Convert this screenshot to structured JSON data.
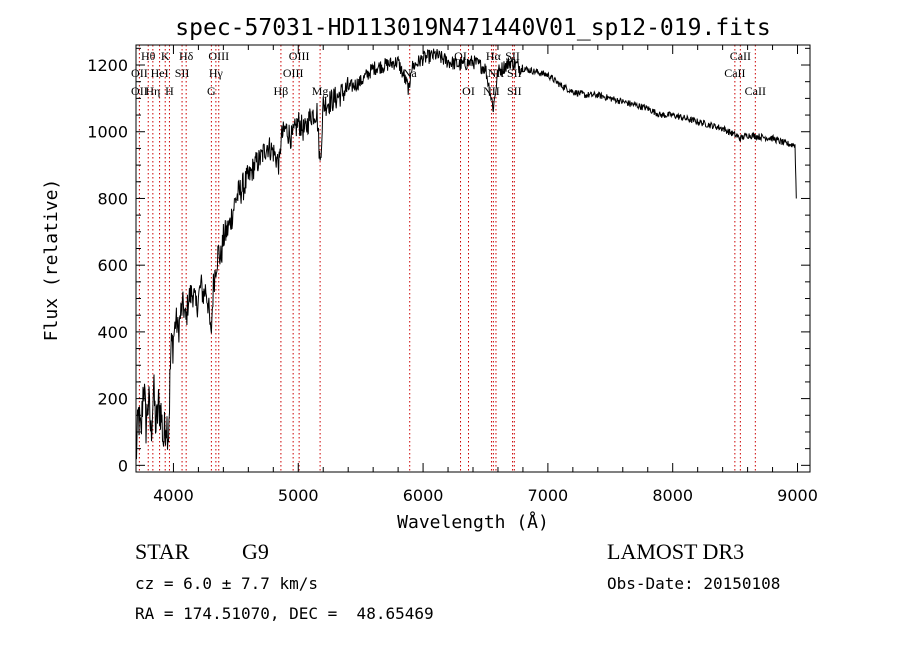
{
  "chart_data": {
    "type": "line",
    "title": "spec-57031-HD113019N471440V01_sp12-019.fits",
    "xlabel": "Wavelength (Å)",
    "ylabel": "Flux (relative)",
    "xlim": [
      3700,
      9100
    ],
    "ylim": [
      -20,
      1260
    ],
    "xticks": [
      4000,
      5000,
      6000,
      7000,
      8000,
      9000
    ],
    "yticks": [
      0,
      200,
      400,
      600,
      800,
      1000,
      1200
    ],
    "grid": false,
    "series": [
      {
        "name": "flux",
        "x": [
          3700,
          3720,
          3740,
          3760,
          3780,
          3800,
          3820,
          3840,
          3860,
          3880,
          3900,
          3920,
          3940,
          3960,
          3980,
          4000,
          4020,
          4040,
          4060,
          4080,
          4100,
          4120,
          4140,
          4160,
          4180,
          4200,
          4220,
          4240,
          4260,
          4280,
          4300,
          4320,
          4340,
          4360,
          4380,
          4400,
          4450,
          4500,
          4550,
          4600,
          4650,
          4700,
          4750,
          4800,
          4850,
          4861,
          4900,
          4950,
          5000,
          5050,
          5100,
          5150,
          5175,
          5200,
          5250,
          5300,
          5400,
          5500,
          5600,
          5700,
          5800,
          5893,
          5900,
          6000,
          6100,
          6200,
          6300,
          6400,
          6500,
          6563,
          6600,
          6700,
          6800,
          6900,
          7000,
          7100,
          7200,
          7300,
          7400,
          7500,
          7600,
          7700,
          7800,
          7900,
          8000,
          8100,
          8200,
          8300,
          8400,
          8500,
          8542,
          8600,
          8700,
          8800,
          8900,
          8980,
          8990
        ],
        "values": [
          20,
          150,
          80,
          260,
          120,
          200,
          90,
          230,
          110,
          180,
          160,
          70,
          140,
          100,
          340,
          380,
          440,
          400,
          460,
          480,
          430,
          500,
          510,
          520,
          470,
          500,
          540,
          510,
          530,
          480,
          380,
          540,
          600,
          640,
          620,
          680,
          720,
          800,
          830,
          860,
          900,
          920,
          960,
          940,
          900,
          980,
          1010,
          980,
          1030,
          1000,
          1050,
          1060,
          900,
          1080,
          1090,
          1100,
          1130,
          1150,
          1190,
          1200,
          1210,
          1120,
          1190,
          1220,
          1230,
          1210,
          1200,
          1210,
          1190,
          1070,
          1180,
          1210,
          1190,
          1180,
          1170,
          1140,
          1120,
          1110,
          1110,
          1100,
          1090,
          1080,
          1070,
          1050,
          1050,
          1040,
          1030,
          1020,
          1010,
          990,
          980,
          990,
          985,
          980,
          965,
          960,
          800
        ]
      }
    ],
    "line_labels": [
      {
        "text": "Hθ",
        "x": 3798,
        "row": 1
      },
      {
        "text": "OII",
        "x": 3727,
        "row": 2
      },
      {
        "text": "OII",
        "x": 3727,
        "row": 3
      },
      {
        "text": "Hη",
        "x": 3835,
        "row": 3
      },
      {
        "text": "K",
        "x": 3934,
        "row": 1
      },
      {
        "text": "HeI",
        "x": 3889,
        "row": 2
      },
      {
        "text": "H",
        "x": 3968,
        "row": 3
      },
      {
        "text": "Hδ",
        "x": 4102,
        "row": 1
      },
      {
        "text": "SII",
        "x": 4069,
        "row": 2
      },
      {
        "text": "OIII",
        "x": 4363,
        "row": 1
      },
      {
        "text": "Hγ",
        "x": 4340,
        "row": 2
      },
      {
        "text": "G",
        "x": 4304,
        "row": 3
      },
      {
        "text": "Hβ",
        "x": 4861,
        "row": 3
      },
      {
        "text": "OIII",
        "x": 5007,
        "row": 1
      },
      {
        "text": "OIII",
        "x": 4959,
        "row": 2
      },
      {
        "text": "Mg",
        "x": 5175,
        "row": 3
      },
      {
        "text": "Na",
        "x": 5893,
        "row": 2
      },
      {
        "text": "OI",
        "x": 6300,
        "row": 1
      },
      {
        "text": "OI",
        "x": 6364,
        "row": 3
      },
      {
        "text": "Hα",
        "x": 6563,
        "row": 1
      },
      {
        "text": "NII",
        "x": 6584,
        "row": 2
      },
      {
        "text": "NII",
        "x": 6548,
        "row": 3
      },
      {
        "text": "SII",
        "x": 6717,
        "row": 1
      },
      {
        "text": "SII",
        "x": 6731,
        "row": 2
      },
      {
        "text": "SII",
        "x": 6731,
        "row": 3
      },
      {
        "text": "CaII",
        "x": 8542,
        "row": 1
      },
      {
        "text": "CaII",
        "x": 8498,
        "row": 2
      },
      {
        "text": "CaII",
        "x": 8662,
        "row": 3
      }
    ],
    "marker_lines": [
      3727,
      3798,
      3835,
      3889,
      3934,
      3968,
      4069,
      4102,
      4304,
      4340,
      4363,
      4861,
      4959,
      5007,
      5175,
      5893,
      6300,
      6364,
      6548,
      6563,
      6584,
      6717,
      6731,
      8498,
      8542,
      8662
    ]
  },
  "footer": {
    "object_class": "STAR",
    "subclass": "G9",
    "survey": "LAMOST DR3",
    "velocity": "cz = 6.0 ± 7.7 km/s",
    "obs_date": "Obs-Date: 20150108",
    "coords": "RA = 174.51070, DEC =  48.65469"
  },
  "colors": {
    "spectrum": "#000000",
    "marker_lines": "#cc0000",
    "axes": "#000000"
  }
}
